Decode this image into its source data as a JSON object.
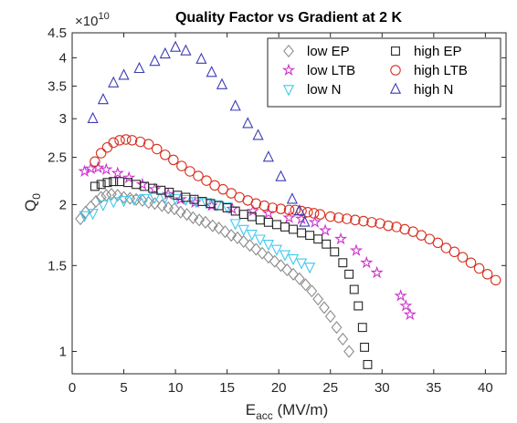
{
  "chart_data": {
    "type": "scatter",
    "title": "Quality Factor vs Gradient at 2 K",
    "xlabel": "E",
    "xlabel_sub": "acc",
    "xlabel_unit": " (MV/m)",
    "ylabel": "Q",
    "ylabel_sub": "0",
    "y_exponent_base": "×10",
    "y_exponent_power": "10",
    "xlim": [
      0,
      42
    ],
    "ylim": [
      0.9,
      4.5
    ],
    "yscale": "log",
    "grid": false,
    "legend_position": "top-right",
    "x_ticks": [
      0,
      5,
      10,
      15,
      20,
      25,
      30,
      35,
      40
    ],
    "x_tick_labels": [
      "0",
      "5",
      "10",
      "15",
      "20",
      "25",
      "30",
      "35",
      "40"
    ],
    "y_ticks": [
      1,
      1.5,
      2,
      2.5,
      3,
      3.5,
      4,
      4.5
    ],
    "y_tick_labels": [
      "1",
      "1.5",
      "2",
      "2.5",
      "3",
      "3.5",
      "4",
      "4.5"
    ],
    "series": [
      {
        "name": "low EP",
        "marker": "diamond",
        "color": "#8c8c8c",
        "points": [
          [
            0.8,
            1.87
          ],
          [
            1.3,
            1.93
          ],
          [
            1.8,
            1.98
          ],
          [
            2.3,
            2.03
          ],
          [
            2.8,
            2.07
          ],
          [
            3.3,
            2.09
          ],
          [
            3.8,
            2.1
          ],
          [
            4.4,
            2.09
          ],
          [
            5.0,
            2.07
          ],
          [
            5.6,
            2.06
          ],
          [
            6.2,
            2.05
          ],
          [
            6.8,
            2.04
          ],
          [
            7.4,
            2.02
          ],
          [
            8.0,
            2.01
          ],
          [
            8.7,
            1.99
          ],
          [
            9.3,
            1.97
          ],
          [
            9.9,
            1.96
          ],
          [
            10.5,
            1.93
          ],
          [
            11.1,
            1.91
          ],
          [
            11.7,
            1.88
          ],
          [
            12.3,
            1.86
          ],
          [
            12.9,
            1.84
          ],
          [
            13.6,
            1.81
          ],
          [
            14.2,
            1.79
          ],
          [
            14.8,
            1.76
          ],
          [
            15.4,
            1.73
          ],
          [
            16.0,
            1.71
          ],
          [
            16.6,
            1.68
          ],
          [
            17.2,
            1.65
          ],
          [
            17.8,
            1.62
          ],
          [
            18.4,
            1.59
          ],
          [
            19.0,
            1.56
          ],
          [
            19.6,
            1.53
          ],
          [
            20.2,
            1.5
          ],
          [
            20.8,
            1.47
          ],
          [
            21.4,
            1.44
          ],
          [
            22.0,
            1.41
          ],
          [
            22.6,
            1.37
          ],
          [
            23.2,
            1.33
          ],
          [
            23.8,
            1.28
          ],
          [
            24.4,
            1.23
          ],
          [
            25.0,
            1.18
          ],
          [
            25.6,
            1.12
          ],
          [
            26.2,
            1.06
          ],
          [
            26.8,
            1.0
          ]
        ]
      },
      {
        "name": "low LTB",
        "marker": "star",
        "color": "#cc33cc",
        "points": [
          [
            1.2,
            2.34
          ],
          [
            1.8,
            2.37
          ],
          [
            2.5,
            2.38
          ],
          [
            3.3,
            2.36
          ],
          [
            4.4,
            2.32
          ],
          [
            5.5,
            2.27
          ],
          [
            6.8,
            2.2
          ],
          [
            8.0,
            2.15
          ],
          [
            9.3,
            2.1
          ],
          [
            10.5,
            2.05
          ],
          [
            11.9,
            2.02
          ],
          [
            13.5,
            1.99
          ],
          [
            15.5,
            1.96
          ],
          [
            17.5,
            1.94
          ],
          [
            19.0,
            1.92
          ],
          [
            21.0,
            1.88
          ],
          [
            22.2,
            1.87
          ],
          [
            23.5,
            1.84
          ],
          [
            24.5,
            1.77
          ],
          [
            26.0,
            1.7
          ],
          [
            27.5,
            1.61
          ],
          [
            28.5,
            1.52
          ],
          [
            29.5,
            1.45
          ],
          [
            31.8,
            1.3
          ],
          [
            32.3,
            1.24
          ],
          [
            32.7,
            1.19
          ]
        ]
      },
      {
        "name": "low N",
        "marker": "triangle-down",
        "color": "#40c8f0",
        "points": [
          [
            1.2,
            1.9
          ],
          [
            2.0,
            1.92
          ],
          [
            3.0,
            2.0
          ],
          [
            4.0,
            2.03
          ],
          [
            5.0,
            2.04
          ],
          [
            6.0,
            2.05
          ],
          [
            7.0,
            2.06
          ],
          [
            8.0,
            2.07
          ],
          [
            9.0,
            2.07
          ],
          [
            10.0,
            2.06
          ],
          [
            11.0,
            2.05
          ],
          [
            12.0,
            2.03
          ],
          [
            13.0,
            2.02
          ],
          [
            14.0,
            2.0
          ],
          [
            15.0,
            1.98
          ],
          [
            15.8,
            1.83
          ],
          [
            16.6,
            1.78
          ],
          [
            17.4,
            1.74
          ],
          [
            18.2,
            1.7
          ],
          [
            19.0,
            1.66
          ],
          [
            19.8,
            1.62
          ],
          [
            20.6,
            1.58
          ],
          [
            21.4,
            1.55
          ],
          [
            22.2,
            1.52
          ],
          [
            23.0,
            1.49
          ]
        ]
      },
      {
        "name": "high EP",
        "marker": "square",
        "color": "#262626",
        "points": [
          [
            2.2,
            2.18
          ],
          [
            2.8,
            2.2
          ],
          [
            3.4,
            2.22
          ],
          [
            4.0,
            2.23
          ],
          [
            4.6,
            2.23
          ],
          [
            5.4,
            2.22
          ],
          [
            6.2,
            2.2
          ],
          [
            7.0,
            2.18
          ],
          [
            7.8,
            2.16
          ],
          [
            8.6,
            2.14
          ],
          [
            9.4,
            2.12
          ],
          [
            10.2,
            2.09
          ],
          [
            11.0,
            2.07
          ],
          [
            11.8,
            2.05
          ],
          [
            12.6,
            2.03
          ],
          [
            13.4,
            2.01
          ],
          [
            14.2,
            1.99
          ],
          [
            15.0,
            1.97
          ],
          [
            15.8,
            1.94
          ],
          [
            16.6,
            1.91
          ],
          [
            17.4,
            1.89
          ],
          [
            18.2,
            1.86
          ],
          [
            19.0,
            1.84
          ],
          [
            19.8,
            1.82
          ],
          [
            20.6,
            1.8
          ],
          [
            21.4,
            1.78
          ],
          [
            22.2,
            1.75
          ],
          [
            23.0,
            1.73
          ],
          [
            23.8,
            1.7
          ],
          [
            24.6,
            1.66
          ],
          [
            25.4,
            1.6
          ],
          [
            26.2,
            1.52
          ],
          [
            26.8,
            1.44
          ],
          [
            27.3,
            1.34
          ],
          [
            27.7,
            1.24
          ],
          [
            28.1,
            1.12
          ],
          [
            28.3,
            1.02
          ],
          [
            28.6,
            0.94
          ]
        ]
      },
      {
        "name": "high LTB",
        "marker": "circle",
        "color": "#d83020",
        "points": [
          [
            2.2,
            2.45
          ],
          [
            2.8,
            2.55
          ],
          [
            3.4,
            2.62
          ],
          [
            4.0,
            2.68
          ],
          [
            4.6,
            2.71
          ],
          [
            5.2,
            2.72
          ],
          [
            5.8,
            2.71
          ],
          [
            6.6,
            2.69
          ],
          [
            7.4,
            2.66
          ],
          [
            8.2,
            2.6
          ],
          [
            9.0,
            2.53
          ],
          [
            9.8,
            2.47
          ],
          [
            10.6,
            2.4
          ],
          [
            11.4,
            2.34
          ],
          [
            12.2,
            2.29
          ],
          [
            13.0,
            2.24
          ],
          [
            13.8,
            2.19
          ],
          [
            14.6,
            2.15
          ],
          [
            15.4,
            2.11
          ],
          [
            16.2,
            2.07
          ],
          [
            17.0,
            2.04
          ],
          [
            17.8,
            2.01
          ],
          [
            18.6,
            1.99
          ],
          [
            19.4,
            1.97
          ],
          [
            20.2,
            1.96
          ],
          [
            21.0,
            1.95
          ],
          [
            21.6,
            1.95
          ],
          [
            22.2,
            1.94
          ],
          [
            22.8,
            1.93
          ],
          [
            23.4,
            1.92
          ],
          [
            24.0,
            1.91
          ],
          [
            25.0,
            1.89
          ],
          [
            25.8,
            1.88
          ],
          [
            26.6,
            1.87
          ],
          [
            27.4,
            1.86
          ],
          [
            28.2,
            1.85
          ],
          [
            29.0,
            1.84
          ],
          [
            29.8,
            1.83
          ],
          [
            30.6,
            1.81
          ],
          [
            31.4,
            1.8
          ],
          [
            32.2,
            1.78
          ],
          [
            33.0,
            1.76
          ],
          [
            33.8,
            1.73
          ],
          [
            34.6,
            1.7
          ],
          [
            35.4,
            1.67
          ],
          [
            36.2,
            1.63
          ],
          [
            37.0,
            1.6
          ],
          [
            37.8,
            1.56
          ],
          [
            38.6,
            1.52
          ],
          [
            39.4,
            1.48
          ],
          [
            40.2,
            1.44
          ],
          [
            41.0,
            1.4
          ]
        ]
      },
      {
        "name": "high N",
        "marker": "triangle-up",
        "color": "#3c3cb4",
        "points": [
          [
            2.0,
            3.0
          ],
          [
            3.0,
            3.28
          ],
          [
            4.0,
            3.55
          ],
          [
            5.0,
            3.68
          ],
          [
            6.5,
            3.8
          ],
          [
            8.0,
            3.93
          ],
          [
            9.0,
            4.07
          ],
          [
            10.0,
            4.2
          ],
          [
            11.0,
            4.13
          ],
          [
            12.5,
            3.97
          ],
          [
            13.5,
            3.73
          ],
          [
            14.5,
            3.52
          ],
          [
            15.8,
            3.18
          ],
          [
            17.0,
            2.93
          ],
          [
            18.0,
            2.77
          ],
          [
            19.0,
            2.5
          ],
          [
            20.2,
            2.28
          ],
          [
            21.3,
            2.05
          ],
          [
            22.0,
            1.94
          ],
          [
            22.5,
            1.84
          ]
        ]
      }
    ]
  }
}
